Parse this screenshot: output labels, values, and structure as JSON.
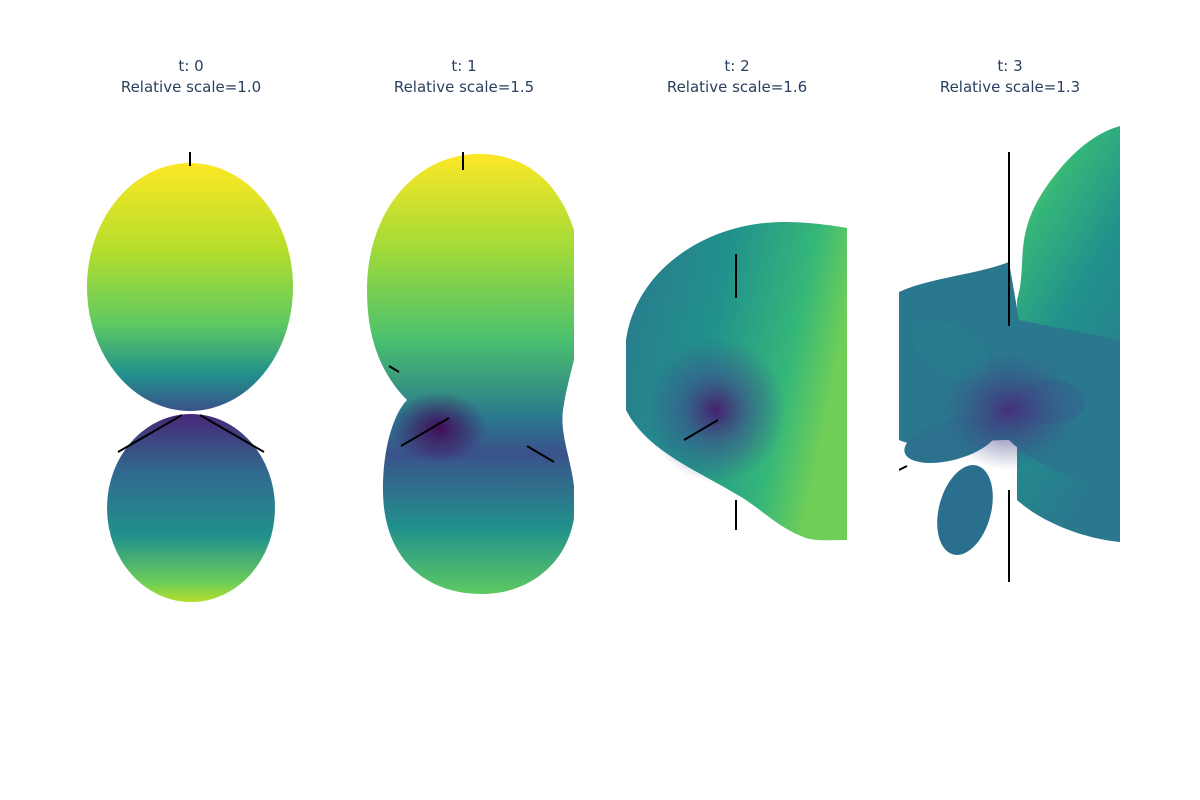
{
  "chart_data": {
    "type": "surface",
    "subplots": [
      {
        "title_line1": "t: 0",
        "title_line2": "Relative scale=1.0",
        "t": 0,
        "relative_scale": 1.0
      },
      {
        "title_line1": "t: 1",
        "title_line2": "Relative scale=1.5",
        "t": 1,
        "relative_scale": 1.5
      },
      {
        "title_line1": "t: 2",
        "title_line2": "Relative scale=1.6",
        "t": 2,
        "relative_scale": 1.6
      },
      {
        "title_line1": "t: 3",
        "title_line2": "Relative scale=1.3",
        "t": 3,
        "relative_scale": 1.3
      }
    ],
    "colorscale": "Viridis",
    "colorscale_stops": [
      "#440154",
      "#3b528b",
      "#21918c",
      "#5ec962",
      "#fde725"
    ],
    "axes_visible": false,
    "legend": "none"
  }
}
